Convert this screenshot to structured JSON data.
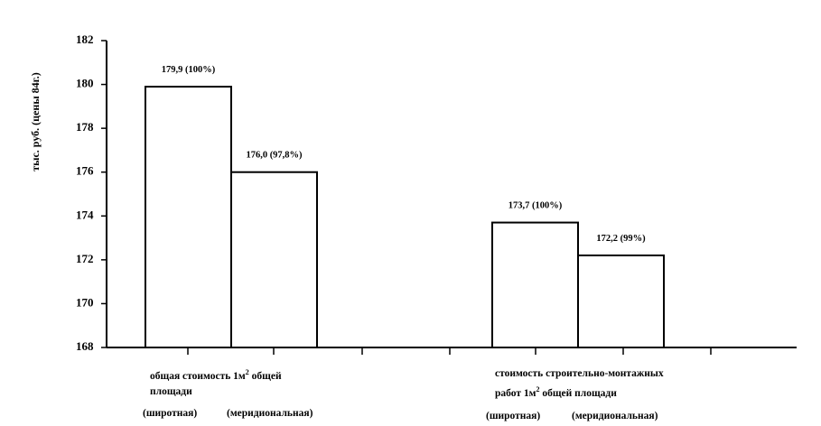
{
  "chart_data": {
    "type": "bar",
    "ylabel": "тыс. руб. (цены 84г.)",
    "ylim": [
      168,
      182
    ],
    "yticks": [
      168,
      170,
      172,
      174,
      176,
      178,
      180,
      182
    ],
    "grid": false,
    "legend": "none",
    "colors": {
      "bar_fill": "#ffffff",
      "bar_stroke": "#000000"
    },
    "groups": [
      {
        "label_pre": "общая стоимость 1м",
        "label_sup": "2",
        "label_post": " общей",
        "label_line2": "площади",
        "series_labels": [
          "(широтная)",
          "(меридиональная)"
        ],
        "values": [
          179.9,
          176.0
        ],
        "data_labels": [
          "179,9 (100%)",
          "176,0 (97,8%)"
        ]
      },
      {
        "label_line1": "стоимость строительно-монтажных",
        "label_pre": "работ 1м",
        "label_sup": "2",
        "label_post": " общей площади",
        "series_labels": [
          "(широтная)",
          "(меридиональная)"
        ],
        "values": [
          173.7,
          172.2
        ],
        "data_labels": [
          "173,7 (100%)",
          "172,2 (99%)"
        ]
      }
    ]
  }
}
